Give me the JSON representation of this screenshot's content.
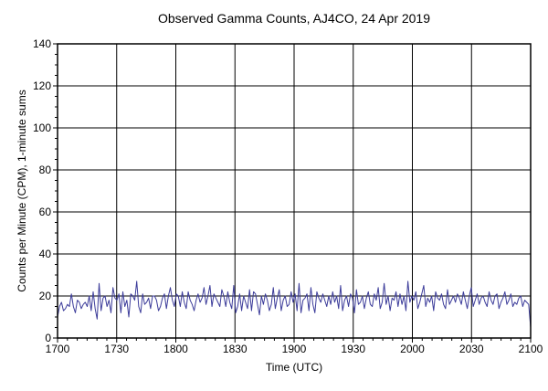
{
  "chart_data": {
    "type": "line",
    "title": "Observed Gamma Counts, AJ4CO, 24 Apr 2019",
    "xlabel": "Time (UTC)",
    "ylabel": "Counts per Minute (CPM), 1-minute sums",
    "x_tick_labels": [
      "1700",
      "1730",
      "1800",
      "1830",
      "1900",
      "1930",
      "2000",
      "2030",
      "2100"
    ],
    "y_tick_labels": [
      "0",
      "20",
      "40",
      "60",
      "80",
      "100",
      "120",
      "140"
    ],
    "xlim": [
      0,
      240
    ],
    "ylim": [
      0,
      140
    ],
    "grid": true,
    "line_color": "#3c3c9a",
    "series": [
      {
        "values": [
          10,
          15,
          17,
          13,
          14,
          16,
          15,
          21,
          15,
          12,
          18,
          17,
          14,
          16,
          17,
          15,
          20,
          13,
          22,
          14,
          9,
          26,
          13,
          19,
          20,
          15,
          18,
          12,
          24,
          19,
          18,
          21,
          12,
          22,
          15,
          18,
          10,
          21,
          20,
          18,
          27,
          15,
          12,
          21,
          16,
          17,
          19,
          14,
          20,
          20,
          18,
          13,
          15,
          19,
          21,
          14,
          20,
          24,
          18,
          15,
          21,
          20,
          15,
          22,
          17,
          14,
          22,
          18,
          16,
          13,
          18,
          21,
          17,
          19,
          24,
          16,
          20,
          25,
          15,
          21,
          19,
          17,
          15,
          23,
          20,
          15,
          22,
          17,
          14,
          25,
          12,
          15,
          21,
          13,
          20,
          17,
          14,
          23,
          13,
          22,
          21,
          16,
          11,
          20,
          16,
          21,
          18,
          13,
          16,
          24,
          14,
          19,
          23,
          13,
          18,
          20,
          15,
          16,
          22,
          17,
          21,
          13,
          26,
          12,
          18,
          19,
          21,
          13,
          24,
          16,
          12,
          22,
          19,
          17,
          21,
          18,
          15,
          20,
          16,
          22,
          17,
          20,
          14,
          25,
          13,
          18,
          20,
          15,
          21,
          19,
          12,
          23,
          16,
          17,
          20,
          14,
          19,
          22,
          16,
          15,
          21,
          18,
          24,
          14,
          17,
          26,
          16,
          20,
          13,
          19,
          18,
          22,
          15,
          21,
          16,
          20,
          13,
          27,
          17,
          20,
          18,
          22,
          14,
          17,
          21,
          25,
          15,
          19,
          17,
          20,
          13,
          22,
          19,
          18,
          21,
          16,
          14,
          23,
          16,
          18,
          20,
          17,
          21,
          19,
          16,
          22,
          18,
          14,
          20,
          24,
          15,
          18,
          21,
          16,
          19,
          20,
          17,
          15,
          22,
          18,
          16,
          20,
          21,
          14,
          17,
          19,
          22,
          16,
          18,
          21,
          15,
          17,
          16,
          19,
          20,
          15,
          18,
          17,
          16,
          5
        ]
      }
    ]
  }
}
